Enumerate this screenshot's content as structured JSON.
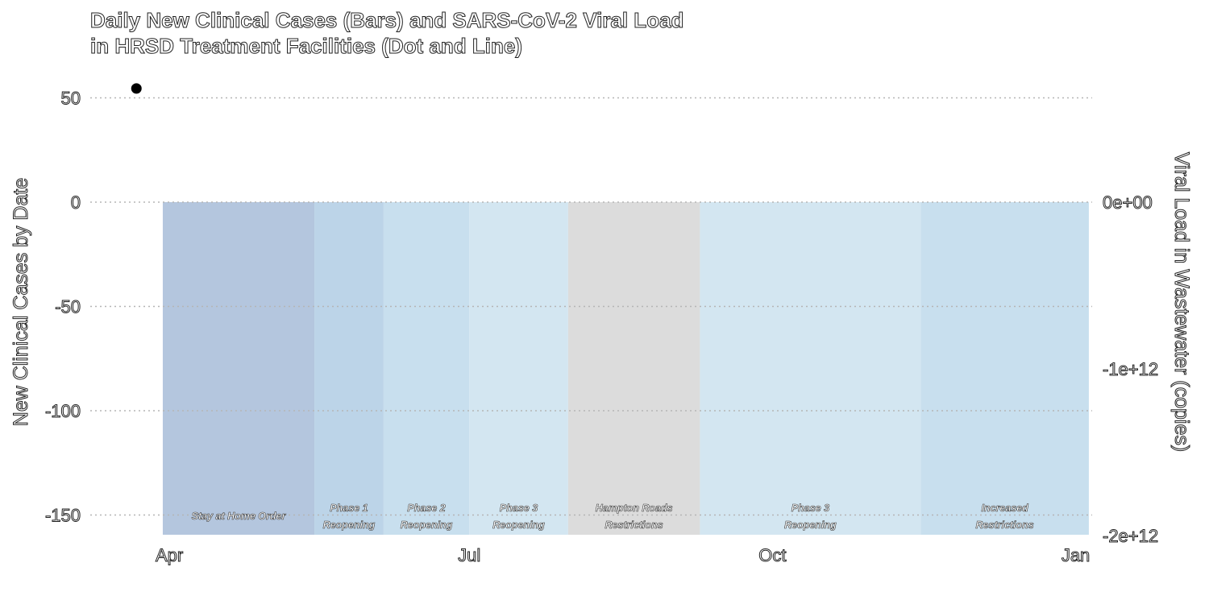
{
  "chart_data": {
    "type": "bar",
    "title_line1": "Daily New Clinical Cases (Bars) and SARS-CoV-2 Viral Load",
    "title_line2": "in HRSD Treatment Facilities (Dot and Line)",
    "ylabel": "New Clinical Cases by Date",
    "y2label": "Viral Load in Wastewater (copies)",
    "ylim": [
      -160,
      55
    ],
    "yticks": [
      50,
      0,
      -50,
      -100,
      -150
    ],
    "ytick_labels": [
      "50",
      "0",
      "-50",
      "-100",
      "-150"
    ],
    "y2ticks": [
      0,
      -1000000000000.0,
      -2000000000000.0
    ],
    "y2tick_labels": [
      "0e+00",
      "-1e+12",
      "-2e+12"
    ],
    "xlim": [
      "2020-03-08",
      "2021-01-06"
    ],
    "xticks": [
      "2020-04-01",
      "2020-07-01",
      "2020-10-01",
      "2021-01-01"
    ],
    "xtick_labels": [
      "Apr",
      "Jul",
      "Oct",
      "Jan"
    ],
    "grid": "horizontal dotted",
    "phases": [
      {
        "start": "2020-03-30",
        "end": "2020-05-15",
        "label": [
          "Stay at Home Order"
        ],
        "color": "#b4c6de"
      },
      {
        "start": "2020-05-15",
        "end": "2020-06-05",
        "label": [
          "Phase 1",
          "Reopening"
        ],
        "color": "#bcd4e8"
      },
      {
        "start": "2020-06-05",
        "end": "2020-07-01",
        "label": [
          "Phase 2",
          "Reopening"
        ],
        "color": "#c8dfee"
      },
      {
        "start": "2020-07-01",
        "end": "2020-07-31",
        "label": [
          "Phase 3",
          "Reopening"
        ],
        "color": "#d3e6f1"
      },
      {
        "start": "2020-07-31",
        "end": "2020-09-09",
        "label": [
          "Hampton Roads",
          "Restrictions"
        ],
        "color": "#dcdcdc"
      },
      {
        "start": "2020-09-09",
        "end": "2020-11-15",
        "label": [
          "Phase 3",
          "Reopening"
        ],
        "color": "#d3e6f1"
      },
      {
        "start": "2020-11-15",
        "end": "2021-01-05",
        "label": [
          "Increased",
          "Restrictions"
        ],
        "color": "#c8dfee"
      }
    ],
    "points": [
      {
        "x": "2020-03-22",
        "y": 54.5
      }
    ],
    "point_color": "#000000"
  }
}
